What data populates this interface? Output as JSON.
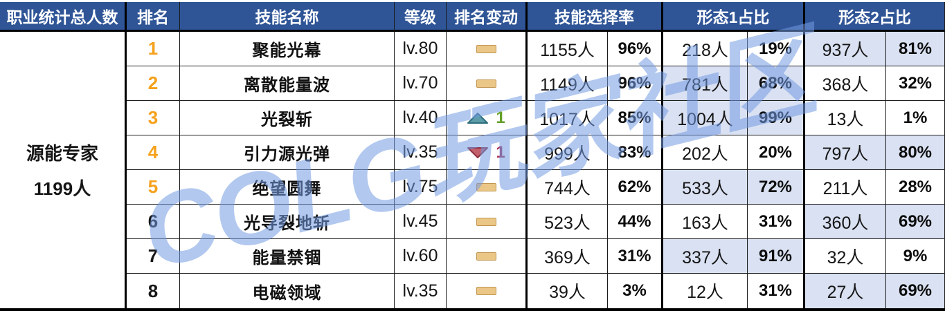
{
  "table": {
    "headers": {
      "class_total": "职业统计总人数",
      "rank": "排名",
      "skill_name": "技能名称",
      "level": "等级",
      "rank_change": "排名变动",
      "selection_rate": "技能选择率",
      "form1_ratio": "形态1占比",
      "form2_ratio": "形态2占比"
    },
    "class_summary": {
      "name": "源能专家",
      "total": "1199人"
    },
    "rows": [
      {
        "rank": "1",
        "rank_color": "#F5A11C",
        "skill": "聚能光幕",
        "level": "lv.80",
        "change": {
          "type": "same",
          "value": ""
        },
        "sel_count": "1155人",
        "sel_pct": "96%",
        "f1_count": "218人",
        "f1_pct": "19%",
        "f1_hl": false,
        "f2_count": "937人",
        "f2_pct": "81%",
        "f2_hl": true
      },
      {
        "rank": "2",
        "rank_color": "#F5A11C",
        "skill": "离散能量波",
        "level": "lv.70",
        "change": {
          "type": "same",
          "value": ""
        },
        "sel_count": "1149人",
        "sel_pct": "96%",
        "f1_count": "781人",
        "f1_pct": "68%",
        "f1_hl": true,
        "f2_count": "368人",
        "f2_pct": "32%",
        "f2_hl": false
      },
      {
        "rank": "3",
        "rank_color": "#F5A11C",
        "skill": "光裂斩",
        "level": "lv.40",
        "change": {
          "type": "up",
          "value": "1"
        },
        "sel_count": "1017人",
        "sel_pct": "85%",
        "f1_count": "1004人",
        "f1_pct": "99%",
        "f1_hl": true,
        "f2_count": "13人",
        "f2_pct": "1%",
        "f2_hl": false
      },
      {
        "rank": "4",
        "rank_color": "#F5A11C",
        "skill": "引力源光弹",
        "level": "lv.35",
        "change": {
          "type": "down",
          "value": "1"
        },
        "sel_count": "999人",
        "sel_pct": "83%",
        "f1_count": "202人",
        "f1_pct": "20%",
        "f1_hl": false,
        "f2_count": "797人",
        "f2_pct": "80%",
        "f2_hl": true
      },
      {
        "rank": "5",
        "rank_color": "#F5A11C",
        "skill": "绝望圆舞",
        "level": "lv.75",
        "change": {
          "type": "same",
          "value": ""
        },
        "sel_count": "744人",
        "sel_pct": "62%",
        "f1_count": "533人",
        "f1_pct": "72%",
        "f1_hl": true,
        "f2_count": "211人",
        "f2_pct": "28%",
        "f2_hl": false
      },
      {
        "rank": "6",
        "rank_color": "#161616",
        "skill": "光导裂地斩",
        "level": "lv.45",
        "change": {
          "type": "same",
          "value": ""
        },
        "sel_count": "523人",
        "sel_pct": "44%",
        "f1_count": "163人",
        "f1_pct": "31%",
        "f1_hl": false,
        "f2_count": "360人",
        "f2_pct": "69%",
        "f2_hl": true
      },
      {
        "rank": "7",
        "rank_color": "#161616",
        "skill": "能量禁锢",
        "level": "lv.60",
        "change": {
          "type": "same",
          "value": ""
        },
        "sel_count": "369人",
        "sel_pct": "31%",
        "f1_count": "337人",
        "f1_pct": "91%",
        "f1_hl": true,
        "f2_count": "32人",
        "f2_pct": "9%",
        "f2_hl": false
      },
      {
        "rank": "8",
        "rank_color": "#161616",
        "skill": "电磁领域",
        "level": "lv.35",
        "change": {
          "type": "same",
          "value": ""
        },
        "sel_count": "39人",
        "sel_pct": "3%",
        "f1_count": "12人",
        "f1_pct": "31%",
        "f1_hl": false,
        "f2_count": "27人",
        "f2_pct": "69%",
        "f2_hl": true
      }
    ]
  },
  "icons": {
    "no_change": "dash-icon",
    "rank_up": "rank-up-triangle-icon",
    "rank_down": "rank-down-triangle-icon"
  },
  "watermark": {
    "text": "COLG玩家社区"
  },
  "colors": {
    "header_bg": "#2F5597",
    "highlight_bg": "#D9E1F2",
    "rank_orange": "#F5A11C",
    "dash_fill": "#EAC687",
    "dash_border": "#C0954E",
    "up_fill": "#5D9CA8",
    "up_stroke": "#2F6E7D",
    "up_num": "#64A12B",
    "down_fill": "#C25F6B",
    "down_stroke": "#8E2F40",
    "down_num": "#A93154",
    "watermark_blue": "rgba(114,155,226,0.55)"
  }
}
